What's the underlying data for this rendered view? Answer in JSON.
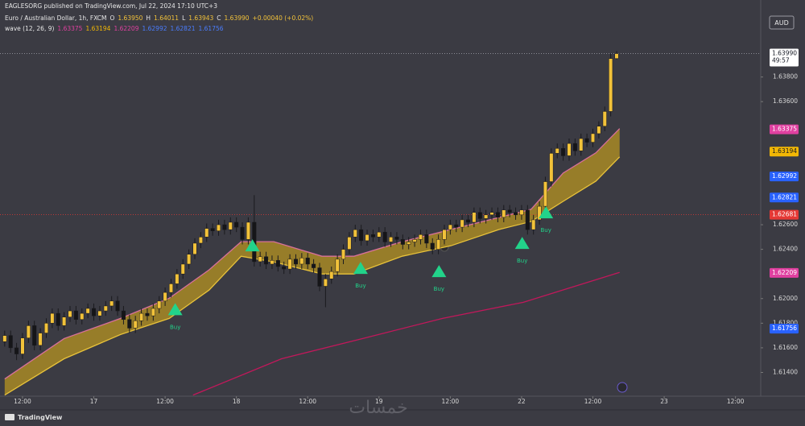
{
  "header": {
    "publisher": "EAGLESORG published on TradingView.com, Jul 22, 2024 17:10 UTC+3",
    "symbol": "Euro / Australian Dollar, 1h, FXCM",
    "ohlc": [
      {
        "key": "O",
        "text": "1.63950"
      },
      {
        "key": "H",
        "text": "1.64011"
      },
      {
        "key": "L",
        "text": "1.63943"
      },
      {
        "key": "C",
        "text": "1.63990"
      }
    ],
    "change": "+0.00040 (+0.02%)",
    "indicator": "wave (12, 26, 9)",
    "indicator_values": [
      {
        "text": "1.63375",
        "color": "#e040a0"
      },
      {
        "text": "1.63194",
        "color": "#f2b705"
      },
      {
        "text": "1.62209",
        "color": "#e040a0"
      },
      {
        "text": "1.62992",
        "color": "#4a7dff"
      },
      {
        "text": "1.62821",
        "color": "#4a7dff"
      },
      {
        "text": "1.61756",
        "color": "#4a7dff"
      }
    ],
    "currency": "AUD"
  },
  "footer": {
    "brand": "TradingView",
    "watermark": "خمسات"
  },
  "chart_data": {
    "type": "candlestick",
    "up_color": "#f2c23a",
    "down_color": "#151518",
    "wick_color": "#1a1a1e",
    "ylim": [
      1.6122,
      1.6436
    ],
    "xlim": [
      -0.79,
      127.25
    ],
    "yticks": [
      {
        "value": 1.614,
        "label": "1.61400"
      },
      {
        "value": 1.616,
        "label": "1.61600"
      },
      {
        "value": 1.618,
        "label": "1.61800"
      },
      {
        "value": 1.62,
        "label": "1.62000"
      },
      {
        "value": 1.624,
        "label": "1.62400"
      },
      {
        "value": 1.626,
        "label": "1.62600"
      },
      {
        "value": 1.636,
        "label": "1.63600"
      },
      {
        "value": 1.638,
        "label": "1.63800"
      }
    ],
    "xticks": [
      {
        "value": 3,
        "label": "12:00"
      },
      {
        "value": 15,
        "label": "17"
      },
      {
        "value": 27,
        "label": "12:00"
      },
      {
        "value": 39,
        "label": "18"
      },
      {
        "value": 51,
        "label": "12:00"
      },
      {
        "value": 63,
        "label": "19"
      },
      {
        "value": 75,
        "label": "12:00"
      },
      {
        "value": 87,
        "label": "22"
      },
      {
        "value": 99,
        "label": "12:00"
      },
      {
        "value": 111,
        "label": "23"
      },
      {
        "value": 123,
        "label": "12:00"
      }
    ],
    "ohlc": [
      [
        1.6165,
        1.6174,
        1.6161,
        1.617
      ],
      [
        1.617,
        1.6174,
        1.6156,
        1.616
      ],
      [
        1.616,
        1.6164,
        1.615,
        1.6155
      ],
      [
        1.6155,
        1.6172,
        1.6151,
        1.6168
      ],
      [
        1.6168,
        1.6182,
        1.6164,
        1.6178
      ],
      [
        1.6178,
        1.6182,
        1.6158,
        1.6162
      ],
      [
        1.6162,
        1.6176,
        1.6158,
        1.6172
      ],
      [
        1.6172,
        1.6184,
        1.6168,
        1.618
      ],
      [
        1.618,
        1.6192,
        1.6176,
        1.6188
      ],
      [
        1.6188,
        1.6192,
        1.6174,
        1.6178
      ],
      [
        1.6178,
        1.6189,
        1.6174,
        1.6185
      ],
      [
        1.6185,
        1.6194,
        1.6181,
        1.619
      ],
      [
        1.619,
        1.6194,
        1.6179,
        1.6183
      ],
      [
        1.6183,
        1.6192,
        1.6179,
        1.6188
      ],
      [
        1.6188,
        1.6196,
        1.6184,
        1.6192
      ],
      [
        1.6192,
        1.6196,
        1.6182,
        1.6186
      ],
      [
        1.6186,
        1.6194,
        1.6182,
        1.619
      ],
      [
        1.619,
        1.6198,
        1.6186,
        1.6194
      ],
      [
        1.6194,
        1.6202,
        1.619,
        1.6198
      ],
      [
        1.6198,
        1.6202,
        1.6186,
        1.619
      ],
      [
        1.619,
        1.6194,
        1.6179,
        1.6183
      ],
      [
        1.6183,
        1.6187,
        1.6172,
        1.6176
      ],
      [
        1.6176,
        1.6186,
        1.6172,
        1.6182
      ],
      [
        1.6182,
        1.6192,
        1.6178,
        1.6188
      ],
      [
        1.6188,
        1.6192,
        1.6182,
        1.6186
      ],
      [
        1.6186,
        1.6196,
        1.6182,
        1.6192
      ],
      [
        1.6192,
        1.6202,
        1.6188,
        1.6198
      ],
      [
        1.6198,
        1.6209,
        1.6194,
        1.6205
      ],
      [
        1.6205,
        1.6216,
        1.6201,
        1.6212
      ],
      [
        1.6212,
        1.6224,
        1.6208,
        1.622
      ],
      [
        1.622,
        1.6232,
        1.6216,
        1.6228
      ],
      [
        1.6228,
        1.624,
        1.6224,
        1.6236
      ],
      [
        1.6236,
        1.6249,
        1.6232,
        1.6245
      ],
      [
        1.6245,
        1.6254,
        1.6241,
        1.625
      ],
      [
        1.625,
        1.6261,
        1.6246,
        1.6257
      ],
      [
        1.6257,
        1.6261,
        1.6251,
        1.6255
      ],
      [
        1.6255,
        1.6264,
        1.6251,
        1.626
      ],
      [
        1.626,
        1.6264,
        1.6252,
        1.6256
      ],
      [
        1.6256,
        1.6266,
        1.6252,
        1.6262
      ],
      [
        1.6262,
        1.6266,
        1.6254,
        1.6258
      ],
      [
        1.6258,
        1.6262,
        1.6244,
        1.6248
      ],
      [
        1.6248,
        1.6266,
        1.6244,
        1.6262
      ],
      [
        1.6262,
        1.6284,
        1.6226,
        1.623
      ],
      [
        1.623,
        1.6238,
        1.6226,
        1.6234
      ],
      [
        1.6234,
        1.6238,
        1.6224,
        1.6228
      ],
      [
        1.6228,
        1.6235,
        1.6224,
        1.6231
      ],
      [
        1.6231,
        1.6235,
        1.6222,
        1.6226
      ],
      [
        1.6226,
        1.623,
        1.622,
        1.6224
      ],
      [
        1.6224,
        1.6236,
        1.622,
        1.6232
      ],
      [
        1.6232,
        1.6236,
        1.6224,
        1.6228
      ],
      [
        1.6228,
        1.6237,
        1.6224,
        1.6233
      ],
      [
        1.6233,
        1.6237,
        1.6224,
        1.6228
      ],
      [
        1.6228,
        1.6232,
        1.6221,
        1.6225
      ],
      [
        1.6225,
        1.6229,
        1.6206,
        1.621
      ],
      [
        1.621,
        1.622,
        1.6193,
        1.6216
      ],
      [
        1.6216,
        1.6226,
        1.6212,
        1.6222
      ],
      [
        1.6222,
        1.6236,
        1.6218,
        1.6232
      ],
      [
        1.6232,
        1.6244,
        1.6228,
        1.624
      ],
      [
        1.624,
        1.6254,
        1.6236,
        1.625
      ],
      [
        1.625,
        1.626,
        1.6246,
        1.6256
      ],
      [
        1.6256,
        1.626,
        1.6243,
        1.6247
      ],
      [
        1.6247,
        1.6256,
        1.6243,
        1.6252
      ],
      [
        1.6252,
        1.6256,
        1.6246,
        1.625
      ],
      [
        1.625,
        1.6258,
        1.6246,
        1.6254
      ],
      [
        1.6254,
        1.6258,
        1.6242,
        1.6246
      ],
      [
        1.6246,
        1.6254,
        1.6242,
        1.625
      ],
      [
        1.625,
        1.6254,
        1.6244,
        1.6248
      ],
      [
        1.6248,
        1.6252,
        1.624,
        1.6244
      ],
      [
        1.6244,
        1.625,
        1.624,
        1.6246
      ],
      [
        1.6246,
        1.6252,
        1.6242,
        1.6248
      ],
      [
        1.6248,
        1.6256,
        1.6244,
        1.6252
      ],
      [
        1.6252,
        1.6256,
        1.6241,
        1.6245
      ],
      [
        1.6245,
        1.6249,
        1.6236,
        1.624
      ],
      [
        1.624,
        1.6252,
        1.6236,
        1.6248
      ],
      [
        1.6248,
        1.626,
        1.6244,
        1.6256
      ],
      [
        1.6256,
        1.6264,
        1.6252,
        1.626
      ],
      [
        1.626,
        1.6264,
        1.6254,
        1.6258
      ],
      [
        1.6258,
        1.6268,
        1.6254,
        1.6264
      ],
      [
        1.6264,
        1.6268,
        1.6258,
        1.6262
      ],
      [
        1.6262,
        1.6274,
        1.6258,
        1.627
      ],
      [
        1.627,
        1.6274,
        1.6261,
        1.6265
      ],
      [
        1.6265,
        1.6272,
        1.6261,
        1.6268
      ],
      [
        1.6268,
        1.6274,
        1.6264,
        1.627
      ],
      [
        1.627,
        1.6274,
        1.6262,
        1.6266
      ],
      [
        1.6266,
        1.6276,
        1.6262,
        1.6272
      ],
      [
        1.6272,
        1.6276,
        1.6266,
        1.627
      ],
      [
        1.627,
        1.6274,
        1.6264,
        1.6268
      ],
      [
        1.6268,
        1.6276,
        1.6264,
        1.6272
      ],
      [
        1.6272,
        1.6276,
        1.6252,
        1.6256
      ],
      [
        1.6256,
        1.6268,
        1.6252,
        1.6264
      ],
      [
        1.6264,
        1.6279,
        1.626,
        1.6275
      ],
      [
        1.6275,
        1.6299,
        1.6271,
        1.6295
      ],
      [
        1.6295,
        1.6322,
        1.6291,
        1.6318
      ],
      [
        1.6318,
        1.6326,
        1.6314,
        1.6322
      ],
      [
        1.6322,
        1.6326,
        1.6312,
        1.6316
      ],
      [
        1.6316,
        1.633,
        1.6312,
        1.6326
      ],
      [
        1.6326,
        1.633,
        1.6316,
        1.632
      ],
      [
        1.632,
        1.6334,
        1.6316,
        1.633
      ],
      [
        1.633,
        1.6334,
        1.6323,
        1.6327
      ],
      [
        1.6327,
        1.6338,
        1.6323,
        1.6334
      ],
      [
        1.6334,
        1.6344,
        1.633,
        1.634
      ],
      [
        1.634,
        1.6356,
        1.6336,
        1.6352
      ],
      [
        1.6352,
        1.6399,
        1.6348,
        1.6395
      ],
      [
        1.6395,
        1.64011,
        1.63943,
        1.6399
      ]
    ],
    "indicators": [
      {
        "color": "#d9709a",
        "x": [
          0,
          10,
          19.5,
          27.7,
          34.4,
          39.8,
          45.3,
          53.4,
          58.8,
          66.9,
          75.1,
          83.2,
          88.6,
          94,
          99.5,
          103.5
        ],
        "values": [
          1.61347,
          1.61675,
          1.61839,
          1.62003,
          1.62233,
          1.62462,
          1.62462,
          1.62344,
          1.62344,
          1.62462,
          1.62561,
          1.62659,
          1.62725,
          1.6302,
          1.63184,
          1.63381
        ]
      },
      {
        "color": "#e8c23a",
        "x": [
          0,
          10,
          19.5,
          27.7,
          34.4,
          39.8,
          45.3,
          53.4,
          58.8,
          66.9,
          75.1,
          83.2,
          88.6,
          94,
          99.5,
          103.5
        ],
        "values": [
          1.61216,
          1.61511,
          1.61708,
          1.61839,
          1.62069,
          1.62344,
          1.62298,
          1.622,
          1.622,
          1.62344,
          1.62429,
          1.62561,
          1.62626,
          1.6279,
          1.62954,
          1.63151
        ]
      },
      {
        "color": "#c2185b",
        "x": [
          31.7,
          46.6,
          60.2,
          73.7,
          87.3,
          103.5
        ],
        "values": [
          1.61216,
          1.61511,
          1.61675,
          1.61839,
          1.6197,
          1.62213
        ]
      }
    ],
    "ribbon_fill": "#a88a24",
    "signals": [
      {
        "x": 28.7,
        "y": 1.61911,
        "label": "Buy"
      },
      {
        "x": 41.7,
        "y": 1.62429
      },
      {
        "x": 59.9,
        "y": 1.62246,
        "label": "Buy"
      },
      {
        "x": 73.1,
        "y": 1.6222,
        "label": "Buy"
      },
      {
        "x": 87.1,
        "y": 1.62449,
        "label": "Buy"
      },
      {
        "x": 91.1,
        "y": 1.62698,
        "label": "Buy"
      }
    ],
    "signal_color": "#22d38a",
    "price_tags": [
      {
        "value": 1.6399,
        "label": "1.63990",
        "sub": "49:57",
        "bg": "#ffffff",
        "fg": "#131722",
        "line": "#9598a1"
      },
      {
        "value": 1.63375,
        "label": "1.63375",
        "bg": "#e040a0",
        "fg": "#ffffff"
      },
      {
        "value": 1.63194,
        "label": "1.63194",
        "bg": "#f2b705",
        "fg": "#131722"
      },
      {
        "value": 1.62992,
        "label": "1.62992",
        "bg": "#2962ff",
        "fg": "#ffffff"
      },
      {
        "value": 1.62821,
        "label": "1.62821",
        "bg": "#2962ff",
        "fg": "#ffffff"
      },
      {
        "value": 1.62681,
        "label": "1.62681",
        "bg": "#e53935",
        "fg": "#ffffff",
        "line": "#e53935"
      },
      {
        "value": 1.62209,
        "label": "1.62209",
        "bg": "#e040a0",
        "fg": "#ffffff"
      },
      {
        "value": 1.61756,
        "label": "1.61756",
        "bg": "#2962ff",
        "fg": "#ffffff"
      }
    ]
  }
}
